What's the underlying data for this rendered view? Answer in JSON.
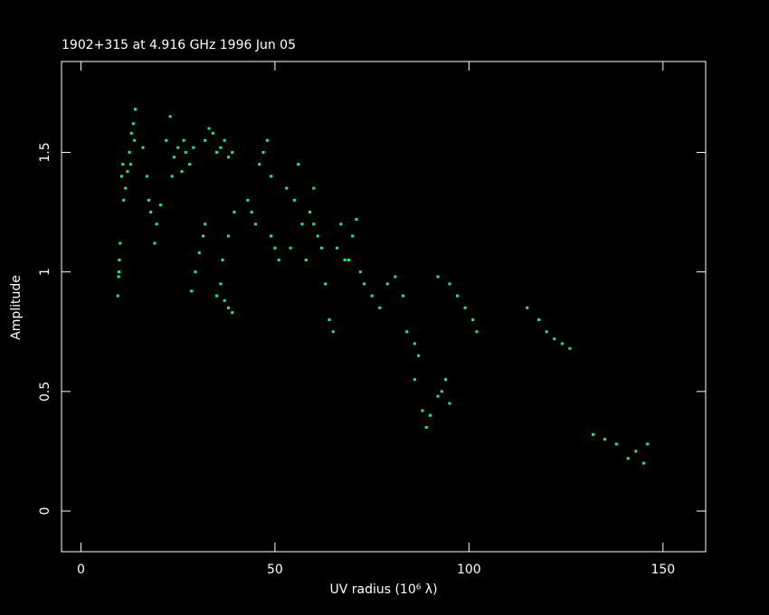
{
  "chart_data": {
    "type": "scatter",
    "title": "1902+315 at 4.916 GHz 1996 Jun 05",
    "x_label": "UV radius  (10⁶ λ)",
    "y_label": "Amplitude",
    "xlim": [
      -5,
      161
    ],
    "ylim": [
      -0.17,
      1.88
    ],
    "xticks": [
      0,
      50,
      100,
      150
    ],
    "yticks": [
      0,
      0.5,
      1,
      1.5
    ],
    "color": "#1aeb8a",
    "x": [
      9.5,
      9.7,
      9.9,
      10.1,
      9.8,
      10.5,
      11,
      11.5,
      12,
      10.8,
      12.5,
      13,
      13.5,
      14,
      13.8,
      12.8,
      16,
      17,
      18,
      19,
      17.5,
      19.5,
      20.5,
      22,
      23,
      24,
      25,
      26,
      27,
      28,
      29,
      23.5,
      26.5,
      28.5,
      29.5,
      30.5,
      31.5,
      32,
      32,
      34,
      35,
      36,
      37,
      38,
      39,
      33,
      35,
      36,
      37,
      38,
      39,
      36.5,
      38,
      39.5,
      43,
      44,
      45,
      46,
      47,
      48,
      49,
      49,
      50,
      51,
      53,
      54,
      55,
      56,
      57,
      58,
      59,
      60,
      60,
      61,
      62,
      63,
      64,
      65,
      66,
      67,
      68,
      69,
      70,
      71,
      72,
      73,
      75,
      77,
      79,
      81,
      83,
      84,
      86,
      87,
      86,
      88,
      89,
      90,
      92,
      93,
      94,
      95,
      92,
      95,
      97,
      99,
      101,
      102,
      115,
      118,
      120,
      122,
      124,
      126,
      132,
      135,
      138,
      141,
      143,
      145,
      146
    ],
    "y": [
      0.9,
      0.98,
      1.05,
      1.12,
      1.0,
      1.4,
      1.3,
      1.35,
      1.42,
      1.45,
      1.5,
      1.58,
      1.62,
      1.68,
      1.55,
      1.45,
      1.52,
      1.4,
      1.25,
      1.12,
      1.3,
      1.2,
      1.28,
      1.55,
      1.65,
      1.48,
      1.52,
      1.42,
      1.5,
      1.45,
      1.52,
      1.4,
      1.55,
      0.92,
      1.0,
      1.08,
      1.15,
      1.2,
      1.55,
      1.58,
      1.5,
      1.52,
      1.55,
      1.48,
      1.5,
      1.6,
      0.9,
      0.95,
      0.88,
      0.85,
      0.83,
      1.05,
      1.15,
      1.25,
      1.3,
      1.25,
      1.2,
      1.45,
      1.5,
      1.55,
      1.4,
      1.15,
      1.1,
      1.05,
      1.35,
      1.1,
      1.3,
      1.45,
      1.2,
      1.05,
      1.25,
      1.35,
      1.2,
      1.15,
      1.1,
      0.95,
      0.8,
      0.75,
      1.1,
      1.2,
      1.05,
      1.05,
      1.15,
      1.22,
      1.0,
      0.95,
      0.9,
      0.85,
      0.95,
      0.98,
      0.9,
      0.75,
      0.7,
      0.65,
      0.55,
      0.42,
      0.35,
      0.4,
      0.48,
      0.5,
      0.55,
      0.45,
      0.98,
      0.95,
      0.9,
      0.85,
      0.8,
      0.75,
      0.85,
      0.8,
      0.75,
      0.72,
      0.7,
      0.68,
      0.32,
      0.3,
      0.28,
      0.22,
      0.25,
      0.2,
      0.28
    ]
  }
}
